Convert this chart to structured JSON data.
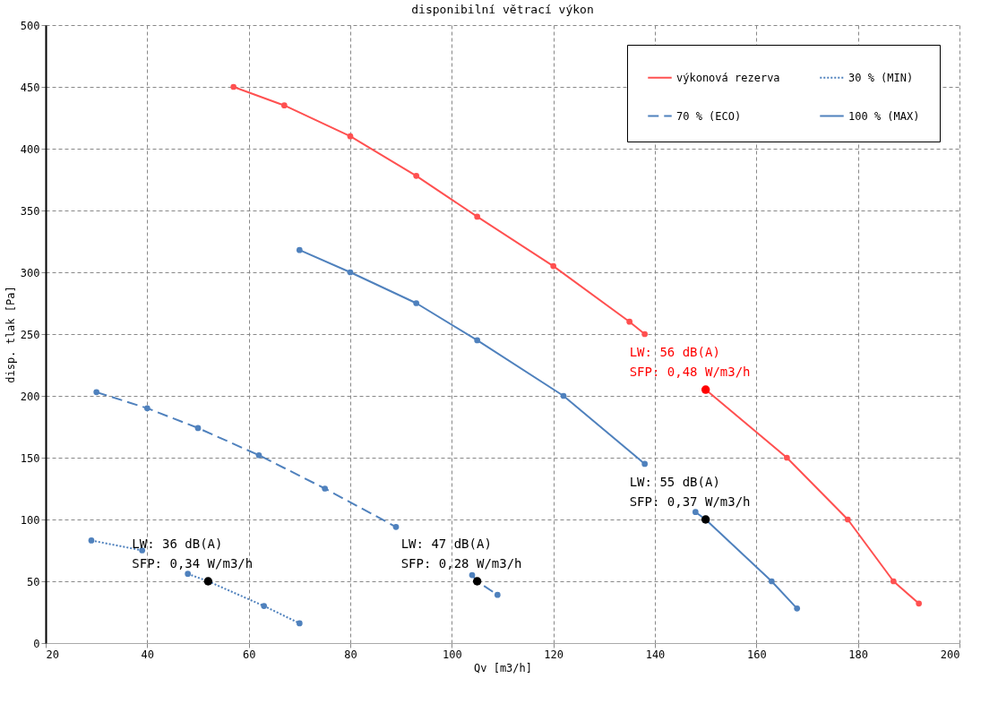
{
  "chart_data": {
    "type": "line",
    "title": "disponibilní větrací výkon",
    "xlabel": "Qv    [m3/h]",
    "ylabel": "disp. tlak   [Pa]",
    "xlim": [
      20,
      200
    ],
    "xticks": [
      20,
      40,
      60,
      80,
      100,
      120,
      140,
      160,
      180,
      200
    ],
    "ylim": [
      0,
      500
    ],
    "yticks": [
      0,
      50,
      100,
      150,
      200,
      250,
      300,
      350,
      400,
      450,
      500
    ],
    "grid": true,
    "legend": "top right",
    "marker": "circle",
    "series": [
      {
        "name": "výkonová rezerva",
        "color": "#ff5050",
        "line_style": "solid",
        "x": [
          57,
          67,
          80,
          93,
          105,
          120,
          135,
          138,
          144,
          150,
          166,
          178,
          187,
          192
        ],
        "values": [
          450,
          435,
          410,
          378,
          345,
          305,
          260,
          250,
          null,
          205,
          150,
          100,
          50,
          32
        ]
      },
      {
        "name": "70 % (ECO)",
        "color": "#4f81bd",
        "line_style": "dashed",
        "x": [
          30,
          40,
          50,
          62,
          75,
          89,
          96,
          104,
          105,
          109
        ],
        "values": [
          203,
          190,
          174,
          152,
          125,
          94,
          null,
          55,
          50,
          39
        ]
      },
      {
        "name": "30 % (MIN)",
        "color": "#4f81bd",
        "line_style": "dotted",
        "x": [
          29,
          39,
          44,
          48,
          52,
          63,
          70
        ],
        "values": [
          83,
          75,
          null,
          56,
          50,
          30,
          16
        ]
      },
      {
        "name": "100 % (MAX)",
        "color": "#4f81bd",
        "line_style": "solid",
        "x": [
          70,
          80,
          93,
          105,
          122,
          138,
          143,
          148,
          150,
          163,
          168
        ],
        "values": [
          318,
          300,
          275,
          245,
          200,
          145,
          null,
          106,
          100,
          50,
          28
        ]
      },
      {
        "type": "scatter",
        "x": [
          52,
          105,
          150,
          150
        ],
        "values": [
          50,
          50,
          100,
          205
        ],
        "colors": [
          "#000000",
          "#000000",
          "#000000",
          "#ff0000"
        ]
      }
    ],
    "annotations": [
      {
        "text": "LW: 36 dB(A)\nSFP: 0,34 W/m3/h",
        "x": 52,
        "y": 50
      },
      {
        "text": "LW: 47 dB(A)\nSFP: 0,28 W/m3/h",
        "x": 105,
        "y": 50
      },
      {
        "text": "LW: 55 dB(A)\nSFP: 0,37 W/m3/h",
        "x": 150,
        "y": 100
      },
      {
        "text": "LW: 56 dB(A)\nSFP: 0,48 W/m3/h",
        "x": 150,
        "y": 205
      }
    ]
  }
}
